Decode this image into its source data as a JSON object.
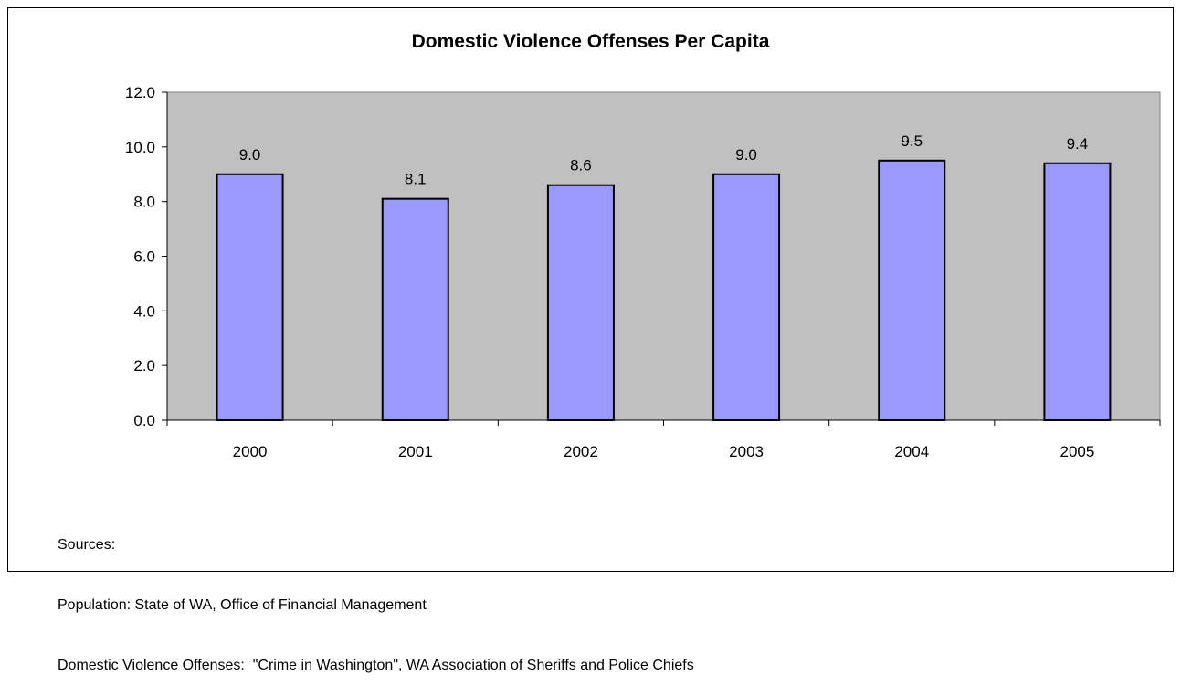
{
  "chart_data": {
    "type": "bar",
    "title": "Domestic Violence Offenses Per Capita",
    "xlabel": "",
    "ylabel": "",
    "categories": [
      "2000",
      "2001",
      "2002",
      "2003",
      "2004",
      "2005"
    ],
    "values": [
      9.0,
      8.1,
      8.6,
      9.0,
      9.5,
      9.4
    ],
    "data_labels": [
      "9.0",
      "8.1",
      "8.6",
      "9.0",
      "9.5",
      "9.4"
    ],
    "y_ticks": [
      "0.0",
      "2.0",
      "4.0",
      "6.0",
      "8.0",
      "10.0",
      "12.0"
    ],
    "ylim": [
      0,
      12
    ],
    "grid": false,
    "legend": "none",
    "colors": {
      "plot_background": "#C0C0C0",
      "bar_fill": "#9999FF",
      "bar_stroke": "#000000"
    }
  },
  "sources": {
    "heading": "Sources:",
    "lines": [
      "Population: State of WA, Office of Financial Management",
      "Domestic Violence Offenses:  \"Crime in Washington\", WA Association of Sheriffs and Police Chiefs"
    ]
  }
}
